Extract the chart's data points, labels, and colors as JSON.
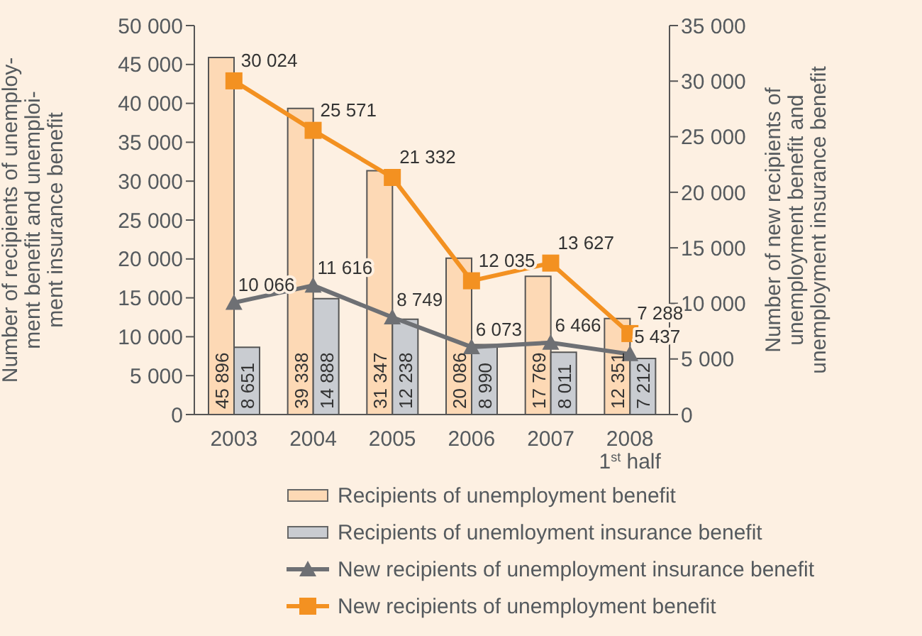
{
  "chart_data": {
    "type": "bar",
    "categories": [
      "2003",
      "2004",
      "2005",
      "2006",
      "2007",
      "2008\n1$^{st}$ half"
    ],
    "ylabel": "Number of recipients of unemploy-\nment benefit and unemploi-\nment insurance benefit",
    "y2label": "Number of new recipients of\nunemployment benefit and\nunemployment insurance benefit",
    "series": [
      {
        "name": "Recipients of unemployment benefit",
        "color": "#fdd9b5",
        "values": [
          45896,
          39338,
          31347,
          20086,
          17769,
          12351
        ],
        "value_labels": [
          "45 896",
          "39 338",
          "31 347",
          "20 086",
          "17 769",
          "12 351"
        ]
      },
      {
        "name": "Recipients of unemloyment insurance benefit",
        "color": "#c9ccd1",
        "values": [
          8651,
          14888,
          12238,
          8990,
          8011,
          7212
        ],
        "value_labels": [
          "8 651",
          "14 888",
          "12 238",
          "8 990",
          "8 011",
          "7 212"
        ]
      },
      {
        "name": "New recipients of unemployment insurance benefit",
        "type": "line",
        "axis": "y2",
        "marker": "triangle",
        "color": "#6e7074",
        "values": [
          10066,
          11616,
          8749,
          6073,
          6466,
          5437
        ],
        "value_labels": [
          "10 066",
          "11 616",
          "8 749",
          "6 073",
          "6 466",
          "5 437"
        ]
      },
      {
        "name": "New recipients of unemployment benefit",
        "type": "line",
        "axis": "y2",
        "marker": "square",
        "color": "#f39121",
        "values": [
          30024,
          25571,
          21332,
          12035,
          13627,
          7288
        ],
        "value_labels": [
          "30 024",
          "25 571",
          "21 332",
          "12 035",
          "13 627",
          "7 288"
        ]
      }
    ],
    "ylim": [
      0,
      50000
    ],
    "yticks": [
      {
        "value": 0,
        "label": "0"
      },
      {
        "value": 5000,
        "label": "5 000"
      },
      {
        "value": 10000,
        "label": "10 000"
      },
      {
        "value": 15000,
        "label": "15 000"
      },
      {
        "value": 20000,
        "label": "20 000"
      },
      {
        "value": 25000,
        "label": "25 000"
      },
      {
        "value": 30000,
        "label": "30 000"
      },
      {
        "value": 35000,
        "label": "35 000"
      },
      {
        "value": 40000,
        "label": "40 000"
      },
      {
        "value": 45000,
        "label": "45 000"
      },
      {
        "value": 50000,
        "label": "50 000"
      }
    ],
    "y2lim": [
      0,
      35000
    ],
    "y2ticks": [
      {
        "value": 0,
        "label": "0"
      },
      {
        "value": 5000,
        "label": "5 000"
      },
      {
        "value": 10000,
        "label": "10 000"
      },
      {
        "value": 15000,
        "label": "15 000"
      },
      {
        "value": 20000,
        "label": "20 000"
      },
      {
        "value": 25000,
        "label": "25 000"
      },
      {
        "value": 30000,
        "label": "30 000"
      },
      {
        "value": 35000,
        "label": "35 000"
      }
    ],
    "grid": false,
    "legend": "bottom"
  }
}
